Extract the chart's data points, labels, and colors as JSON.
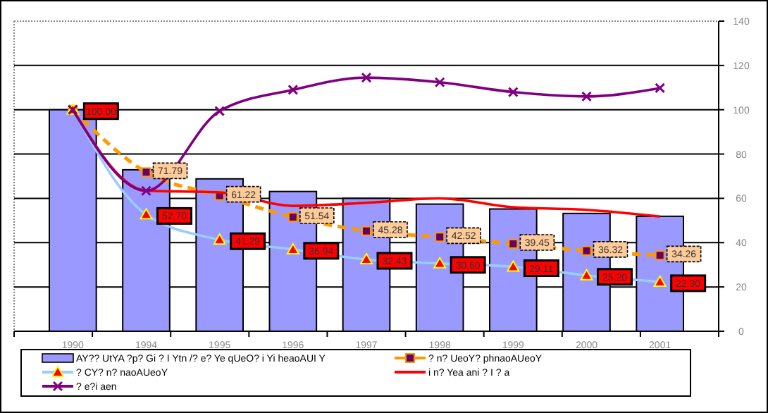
{
  "chart_data": {
    "type": "bar",
    "categories": [
      "1990",
      "1994",
      "1995",
      "1996",
      "1997",
      "1998",
      "1999",
      "2000",
      "2001"
    ],
    "ylim": [
      0,
      140
    ],
    "yticks": [
      0,
      20,
      40,
      60,
      80,
      100,
      120,
      140
    ],
    "grid": "y",
    "legend": "bottom",
    "series": [
      {
        "name": "AY?? UtYA ?p? Gi ? I Ytn /? e? Ye qUeO? i Yi heaoAUI Y",
        "color": "#9999ff",
        "values": [
          100,
          72.9,
          68.8,
          63.1,
          60,
          57.4,
          55.2,
          53.2,
          51.9
        ]
      },
      {
        "name": "? n? UeoY? phnaoAUeoY",
        "type": "line",
        "color": "#ff9900",
        "line_style": "dashed",
        "marker": "square",
        "values": [
          100,
          71.79,
          61.22,
          51.54,
          45.28,
          42.52,
          39.45,
          36.32,
          34.26
        ],
        "value_labels": [
          null,
          "71.79",
          "61.22",
          "51.54",
          "45.28",
          "42.52",
          "39.45",
          "36.32",
          "34.26"
        ]
      },
      {
        "name": "? CY? n? naoAUeoY",
        "type": "line",
        "color": "#99ccff",
        "line_style": "solid",
        "marker": "triangle",
        "values": [
          100,
          52.7,
          41.29,
          36.94,
          32.43,
          30.6,
          29.11,
          25.2,
          22.3
        ],
        "value_labels": [
          "100.00",
          "52.70",
          "41.29",
          "36.94",
          "32.43",
          "30.60",
          "29.11",
          "25.20",
          "22.30"
        ]
      },
      {
        "name": "i n? Yea ani ? I ? a",
        "type": "line",
        "color": "#ff0000",
        "line_style": "solid",
        "marker": "none",
        "values": [
          100,
          63.5,
          62.7,
          56.6,
          58,
          60,
          56,
          54.8,
          51.8
        ]
      },
      {
        "name": "? e?i aen",
        "type": "line",
        "color": "#800080",
        "line_style": "solid",
        "marker": "cross",
        "values": [
          100,
          63.4,
          99.4,
          109,
          114.5,
          112.4,
          108,
          106,
          109.8
        ]
      }
    ]
  }
}
